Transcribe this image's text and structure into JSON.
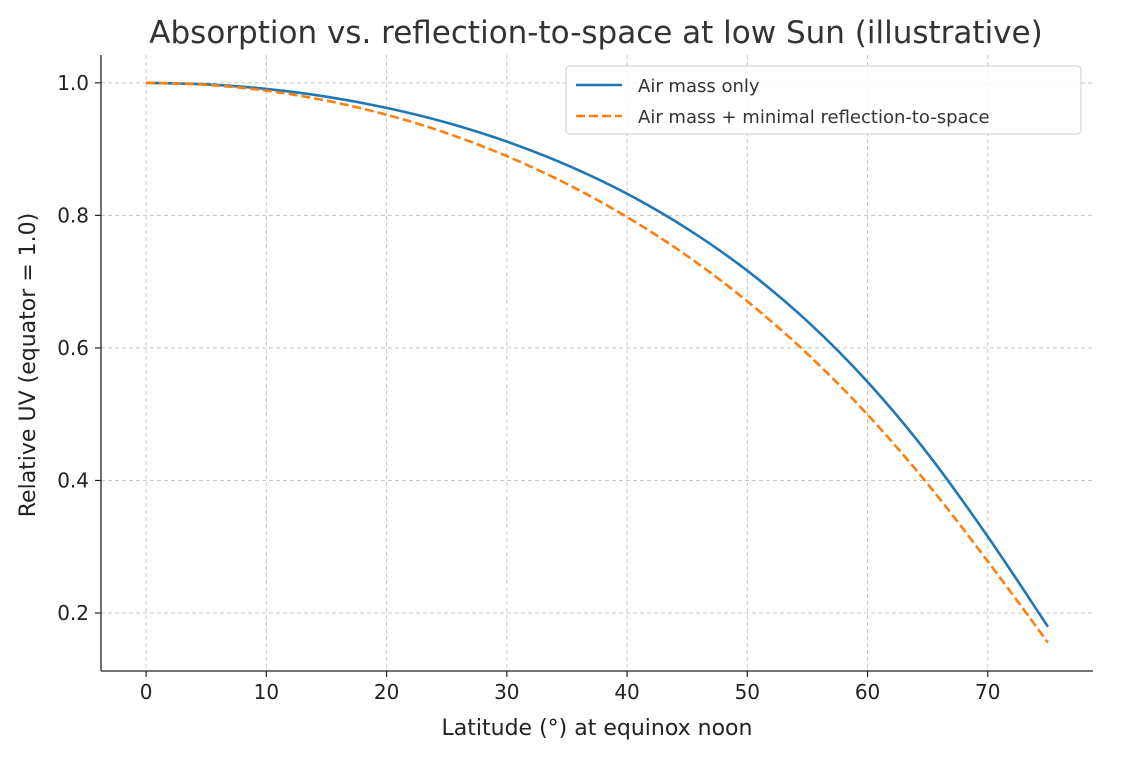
{
  "chart_data": {
    "type": "line",
    "title": "Absorption vs. reflection-to-space at low Sun (illustrative)",
    "xlabel": "Latitude (°) at equinox noon",
    "ylabel": "Relative UV (equator = 1.0)",
    "xlim": [
      -3.75,
      78.75
    ],
    "ylim": [
      0.1125,
      1.042
    ],
    "xticks": [
      0,
      10,
      20,
      30,
      40,
      50,
      60,
      70
    ],
    "yticks": [
      0.2,
      0.4,
      0.6,
      0.8,
      1.0
    ],
    "ytick_labels": [
      "0.2",
      "0.4",
      "0.6",
      "0.8",
      "1.0"
    ],
    "grid": true,
    "legend_position": "top-right",
    "x": [
      0,
      5,
      10,
      15,
      20,
      25,
      30,
      35,
      40,
      45,
      50,
      55,
      60,
      65,
      70,
      75
    ],
    "series": [
      {
        "name": "Air mass only",
        "color": "#1f77b4",
        "style": "solid",
        "values": [
          1.0,
          0.9977,
          0.9908,
          0.9791,
          0.9622,
          0.9399,
          0.9114,
          0.8759,
          0.8326,
          0.7799,
          0.7165,
          0.6401,
          0.5488,
          0.4406,
          0.3153,
          0.1794
        ]
      },
      {
        "name": "Air mass + minimal reflection-to-space",
        "color": "#ff7f0e",
        "style": "dashed",
        "values": [
          1.0,
          0.997,
          0.9881,
          0.9731,
          0.9518,
          0.9241,
          0.8894,
          0.8474,
          0.7975,
          0.7388,
          0.6704,
          0.591,
          0.4994,
          0.3948,
          0.278,
          0.1555
        ]
      }
    ]
  }
}
